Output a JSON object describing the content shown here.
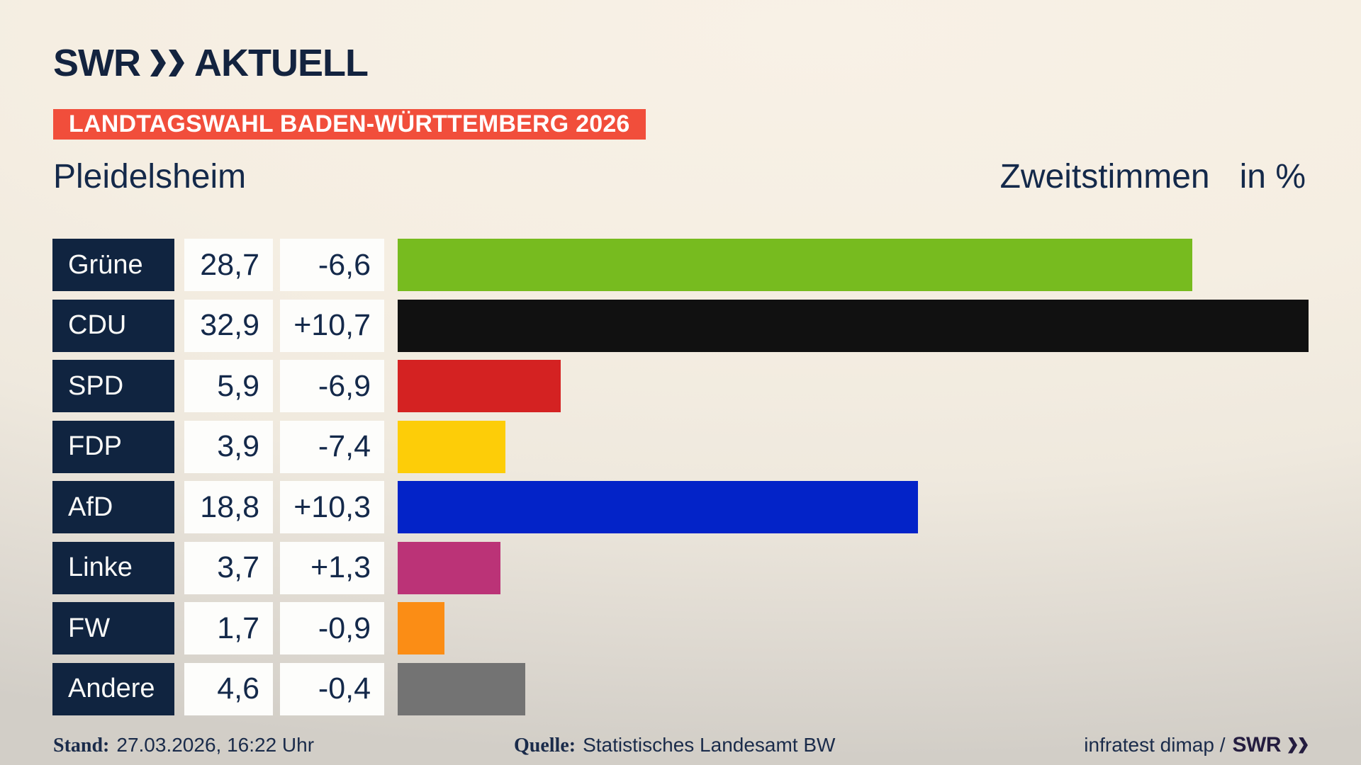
{
  "brand": {
    "name": "SWR",
    "product": "AKTUELL"
  },
  "banner": {
    "text": "LANDTAGSWAHL BADEN-WÜRTTEMBERG 2026",
    "background": "#f14e3b"
  },
  "subtitle": {
    "region": "Pleidelsheim",
    "metric": "Zweitstimmen",
    "unit": "in %"
  },
  "chart_data": {
    "type": "bar",
    "orientation": "horizontal",
    "title": "Zweitstimmen in %",
    "region": "Pleidelsheim",
    "categories": [
      "Grüne",
      "CDU",
      "SPD",
      "FDP",
      "AfD",
      "Linke",
      "FW",
      "Andere"
    ],
    "values": [
      28.7,
      32.9,
      5.9,
      3.9,
      18.8,
      3.7,
      1.7,
      4.6
    ],
    "value_labels": [
      "28,7",
      "32,9",
      "5,9",
      "3,9",
      "18,8",
      "3,7",
      "1,7",
      "4,6"
    ],
    "changes": [
      -6.6,
      10.7,
      -6.9,
      -7.4,
      10.3,
      1.3,
      -0.9,
      -0.4
    ],
    "change_labels": [
      "-6,6",
      "+10,7",
      "-6,9",
      "-7,4",
      "+10,3",
      "+1,3",
      "-0,9",
      "-0,4"
    ],
    "bar_colors": [
      "#77bb1f",
      "#111111",
      "#d42222",
      "#fdcd08",
      "#0323c8",
      "#bb3377",
      "#fb8d15",
      "#737373"
    ],
    "xlim": [
      0,
      32.9
    ],
    "unit": "%",
    "grid": false,
    "legend": false,
    "label_cell_color": "#102440"
  },
  "footer": {
    "stand_label": "Stand:",
    "stand_value": "27.03.2026, 16:22 Uhr",
    "quelle_label": "Quelle:",
    "quelle_value": "Statistisches Landesamt BW",
    "credit_text": "infratest dimap /",
    "credit_brand": "SWR"
  }
}
